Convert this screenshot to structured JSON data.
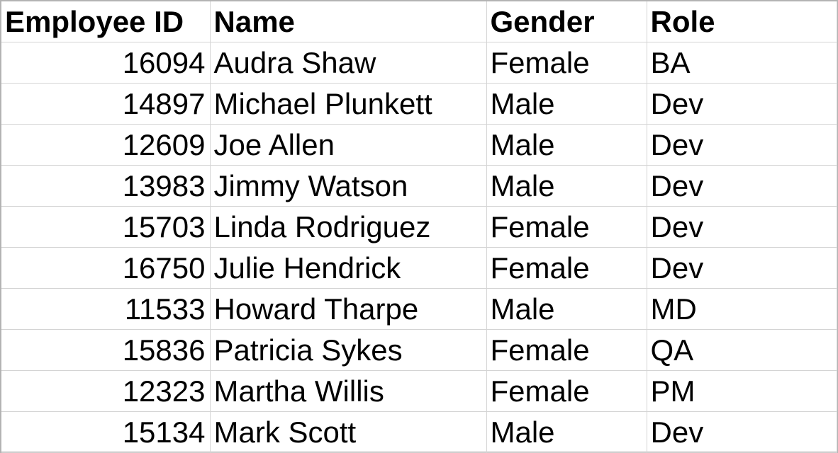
{
  "headers": {
    "employee_id": "Employee ID",
    "name": "Name",
    "gender": "Gender",
    "role": "Role"
  },
  "rows": [
    {
      "employee_id": "16094",
      "name": "Audra Shaw",
      "gender": "Female",
      "role": "BA"
    },
    {
      "employee_id": "14897",
      "name": "Michael Plunkett",
      "gender": "Male",
      "role": "Dev"
    },
    {
      "employee_id": "12609",
      "name": "Joe Allen",
      "gender": "Male",
      "role": "Dev"
    },
    {
      "employee_id": "13983",
      "name": "Jimmy Watson",
      "gender": "Male",
      "role": "Dev"
    },
    {
      "employee_id": "15703",
      "name": "Linda Rodriguez",
      "gender": "Female",
      "role": "Dev"
    },
    {
      "employee_id": "16750",
      "name": "Julie Hendrick",
      "gender": "Female",
      "role": "Dev"
    },
    {
      "employee_id": "11533",
      "name": "Howard Tharpe",
      "gender": "Male",
      "role": "MD"
    },
    {
      "employee_id": "15836",
      "name": "Patricia Sykes",
      "gender": "Female",
      "role": "QA"
    },
    {
      "employee_id": "12323",
      "name": "Martha Willis",
      "gender": "Female",
      "role": "PM"
    },
    {
      "employee_id": "15134",
      "name": "Mark Scott",
      "gender": "Male",
      "role": "Dev"
    }
  ]
}
